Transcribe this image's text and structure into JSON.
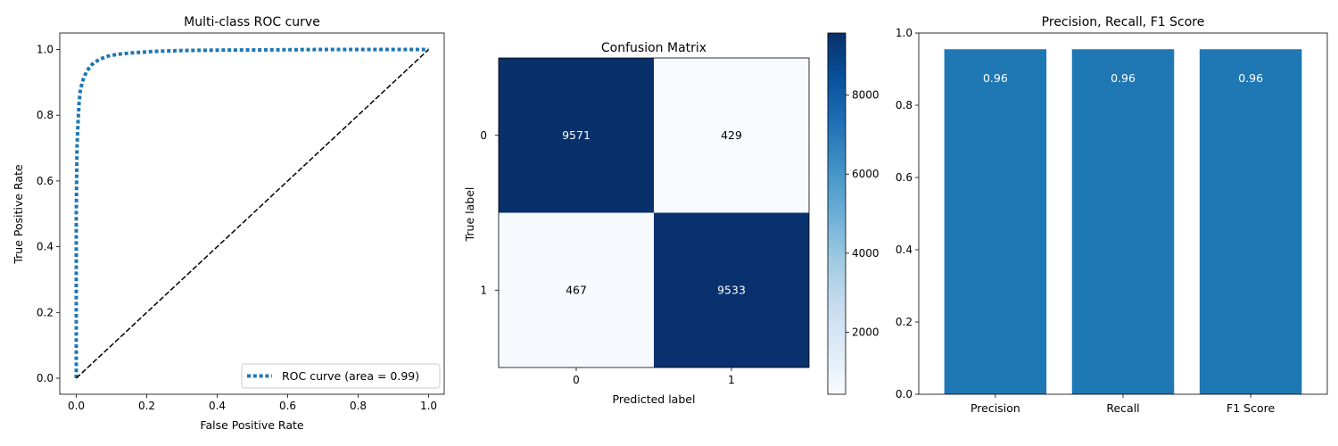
{
  "chart_data": [
    {
      "type": "line",
      "title": "Multi-class ROC curve",
      "xlabel": "False Positive Rate",
      "ylabel": "True Positive Rate",
      "xlim": [
        0,
        1
      ],
      "ylim": [
        0,
        1
      ],
      "xticks": [
        "0.0",
        "0.2",
        "0.4",
        "0.6",
        "0.8",
        "1.0"
      ],
      "yticks": [
        "0.0",
        "0.2",
        "0.4",
        "0.6",
        "0.8",
        "1.0"
      ],
      "legend": {
        "placement": "lower right",
        "entries": [
          "ROC curve (area = 0.99)"
        ]
      },
      "series": [
        {
          "name": "ROC curve (area = 0.99)",
          "color": "#1f77b4",
          "style": "dotted",
          "x": [
            0,
            0,
            0.002,
            0.005,
            0.008,
            0.012,
            0.02,
            0.03,
            0.045,
            0.065,
            0.09,
            0.12,
            0.16,
            0.22,
            0.3,
            0.4,
            0.55,
            0.7,
            0.85,
            1.0
          ],
          "y": [
            0,
            0.5,
            0.7,
            0.78,
            0.84,
            0.88,
            0.91,
            0.935,
            0.955,
            0.97,
            0.98,
            0.986,
            0.99,
            0.994,
            0.997,
            0.998,
            0.999,
            1.0,
            1.0,
            1.0
          ]
        },
        {
          "color": "#000000",
          "style": "dashed",
          "x": [
            0,
            1
          ],
          "y": [
            0,
            1
          ]
        }
      ]
    },
    {
      "type": "heatmap",
      "title": "Confusion Matrix",
      "xlabel": "Predicted label",
      "ylabel": "True label",
      "x_categories": [
        "0",
        "1"
      ],
      "y_categories": [
        "0",
        "1"
      ],
      "values": [
        [
          9571,
          429
        ],
        [
          467,
          9533
        ]
      ],
      "colormap": "Blues",
      "colorbar_range": [
        429,
        9571
      ],
      "colorbar_ticks": [
        2000,
        4000,
        6000,
        8000
      ]
    },
    {
      "type": "bar",
      "title": "Precision, Recall, F1 Score",
      "categories": [
        "Precision",
        "Recall",
        "F1 Score"
      ],
      "values": [
        0.955,
        0.955,
        0.955
      ],
      "labels": [
        "0.96",
        "0.96",
        "0.96"
      ],
      "color": "#1f77b4",
      "ylim": [
        0,
        1
      ],
      "yticks": [
        "0.0",
        "0.2",
        "0.4",
        "0.6",
        "0.8",
        "1.0"
      ]
    }
  ]
}
